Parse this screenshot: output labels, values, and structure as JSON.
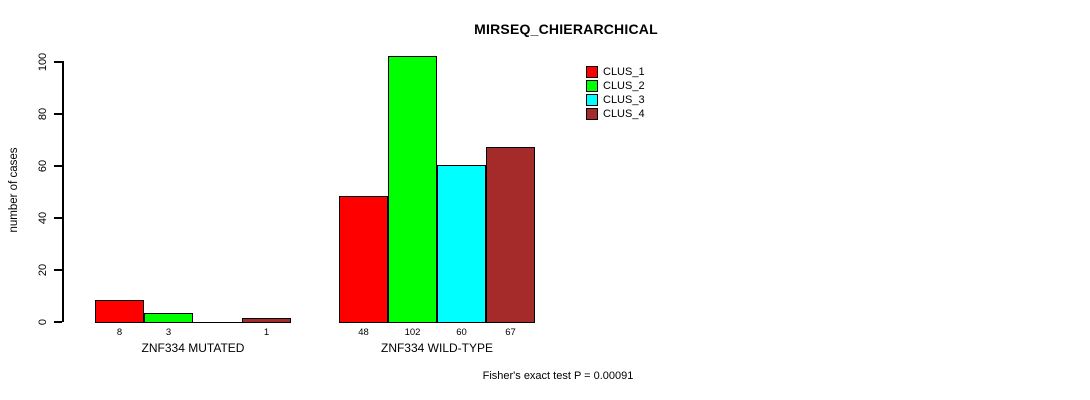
{
  "chart_data": {
    "type": "bar",
    "title": "MIRSEQ_CHIERARCHICAL",
    "ylabel": "number of cases",
    "xlabel": "",
    "yticks": [
      0,
      20,
      40,
      60,
      80,
      100
    ],
    "ylim": [
      0,
      100
    ],
    "grid": false,
    "legend_position": "top-right-inside",
    "categories": [
      "ZNF334 MUTATED",
      "ZNF334 WILD-TYPE"
    ],
    "series": [
      {
        "name": "CLUS_1",
        "color": "#FF0000",
        "values": [
          8,
          48
        ]
      },
      {
        "name": "CLUS_2",
        "color": "#00FF00",
        "values": [
          3,
          102
        ]
      },
      {
        "name": "CLUS_3",
        "color": "#00FFFF",
        "values": [
          0,
          60
        ]
      },
      {
        "name": "CLUS_4",
        "color": "#A52A2A",
        "values": [
          1,
          67
        ]
      }
    ],
    "bar_value_labels": [
      [
        "8",
        "3",
        "",
        "1"
      ],
      [
        "48",
        "102",
        "60",
        "67"
      ]
    ],
    "annotation": "Fisher's exact test P = 0.00091"
  }
}
